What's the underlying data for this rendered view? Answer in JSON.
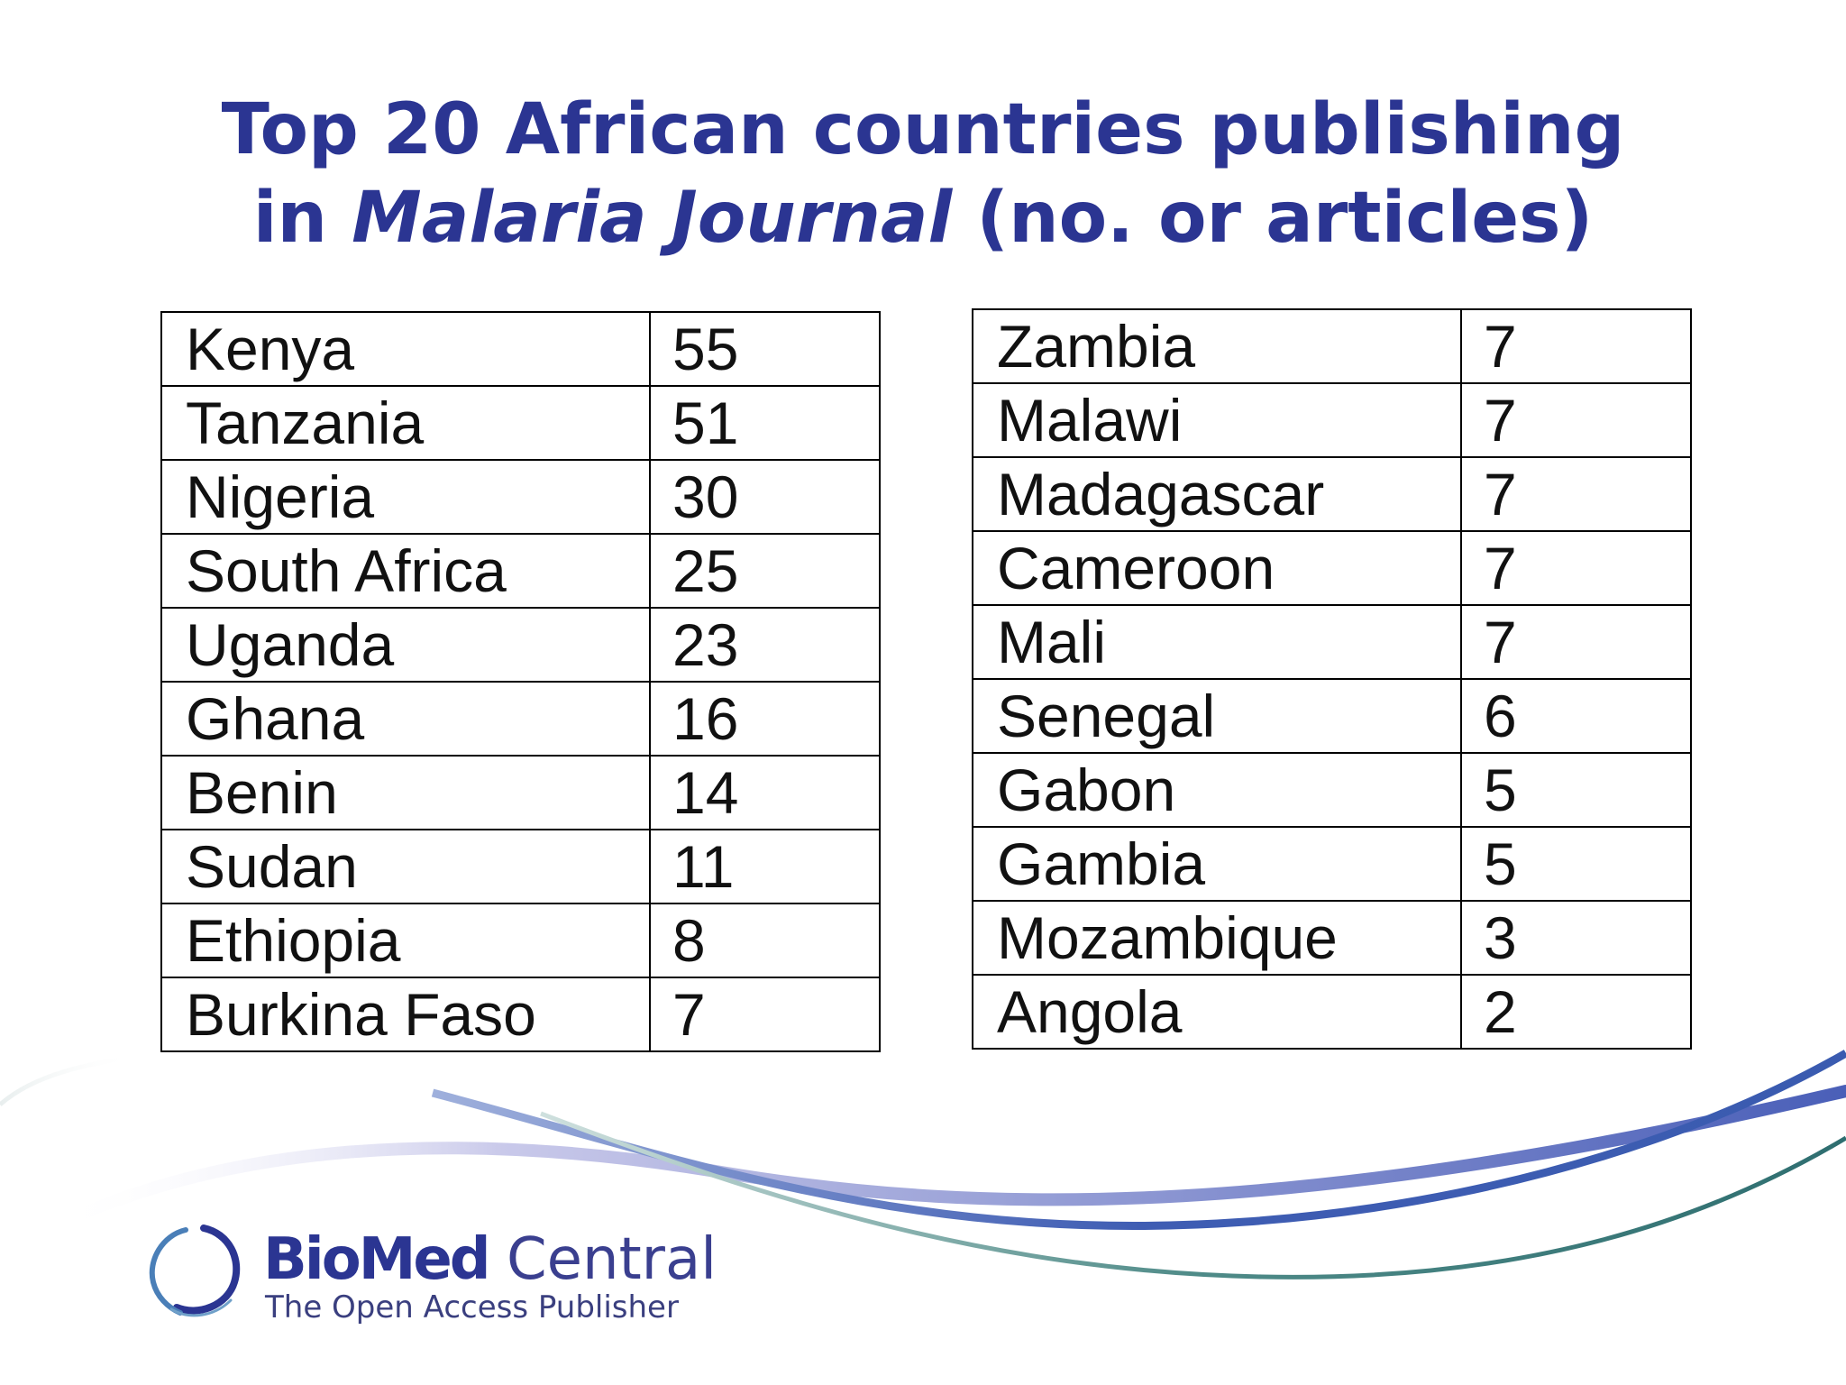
{
  "title": {
    "line1": "Top 20 African countries publishing",
    "line2_prefix": "in ",
    "line2_italic": "Malaria Journal",
    "line2_suffix": " (no. or articles)"
  },
  "tables": {
    "left": [
      {
        "country": "Kenya",
        "count": "55"
      },
      {
        "country": "Tanzania",
        "count": "51"
      },
      {
        "country": "Nigeria",
        "count": "30"
      },
      {
        "country": "South Africa",
        "count": "25"
      },
      {
        "country": "Uganda",
        "count": "23"
      },
      {
        "country": "Ghana",
        "count": "16"
      },
      {
        "country": "Benin",
        "count": "14"
      },
      {
        "country": "Sudan",
        "count": "11"
      },
      {
        "country": "Ethiopia",
        "count": "8"
      },
      {
        "country": "Burkina Faso",
        "count": "7"
      }
    ],
    "right": [
      {
        "country": "Zambia",
        "count": "7"
      },
      {
        "country": "Malawi",
        "count": "7"
      },
      {
        "country": "Madagascar",
        "count": "7"
      },
      {
        "country": "Cameroon",
        "count": "7"
      },
      {
        "country": "Mali",
        "count": "7"
      },
      {
        "country": "Senegal",
        "count": "6"
      },
      {
        "country": "Gabon",
        "count": "5"
      },
      {
        "country": "Gambia",
        "count": "5"
      },
      {
        "country": "Mozambique",
        "count": "3"
      },
      {
        "country": "Angola",
        "count": "2"
      }
    ]
  },
  "logo": {
    "name_bold": "BioMed",
    "name_regular": " Central",
    "tagline": "The Open Access Publisher"
  },
  "colors": {
    "title": "#2b3592",
    "wave_blue": "#3a5bb0",
    "wave_teal": "#3f7a78",
    "wave_lavender": "#b8b8e0"
  }
}
